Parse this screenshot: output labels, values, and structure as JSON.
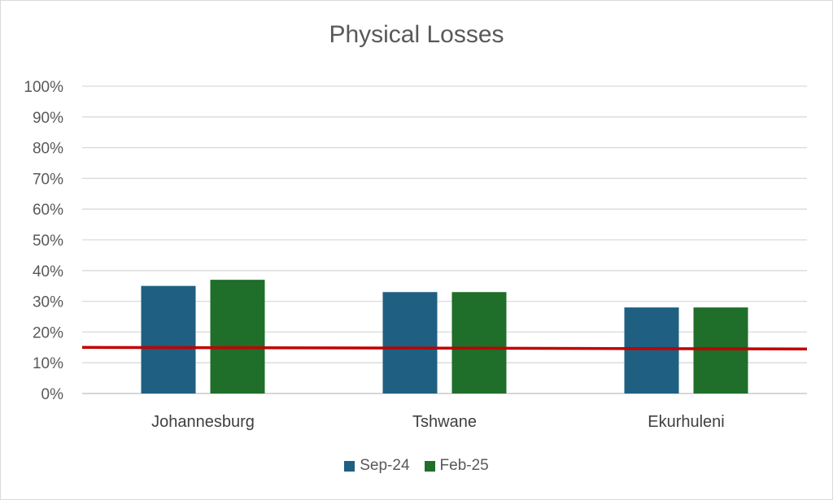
{
  "chart_data": {
    "type": "bar",
    "title": "Physical Losses",
    "categories": [
      "Johannesburg",
      "Tshwane",
      "Ekurhuleni"
    ],
    "series": [
      {
        "name": "Sep-24",
        "values": [
          35,
          33,
          28
        ],
        "color": "#1f5f82"
      },
      {
        "name": "Feb-25",
        "values": [
          37,
          33,
          28
        ],
        "color": "#1f6e2a"
      }
    ],
    "reference_line": {
      "values": [
        15,
        14.5
      ],
      "color": "#c00000"
    },
    "yticks": [
      "0%",
      "10%",
      "20%",
      "30%",
      "40%",
      "50%",
      "60%",
      "70%",
      "80%",
      "90%",
      "100%"
    ],
    "ylim": [
      0,
      100
    ],
    "grid": true,
    "legend": "bottom"
  }
}
